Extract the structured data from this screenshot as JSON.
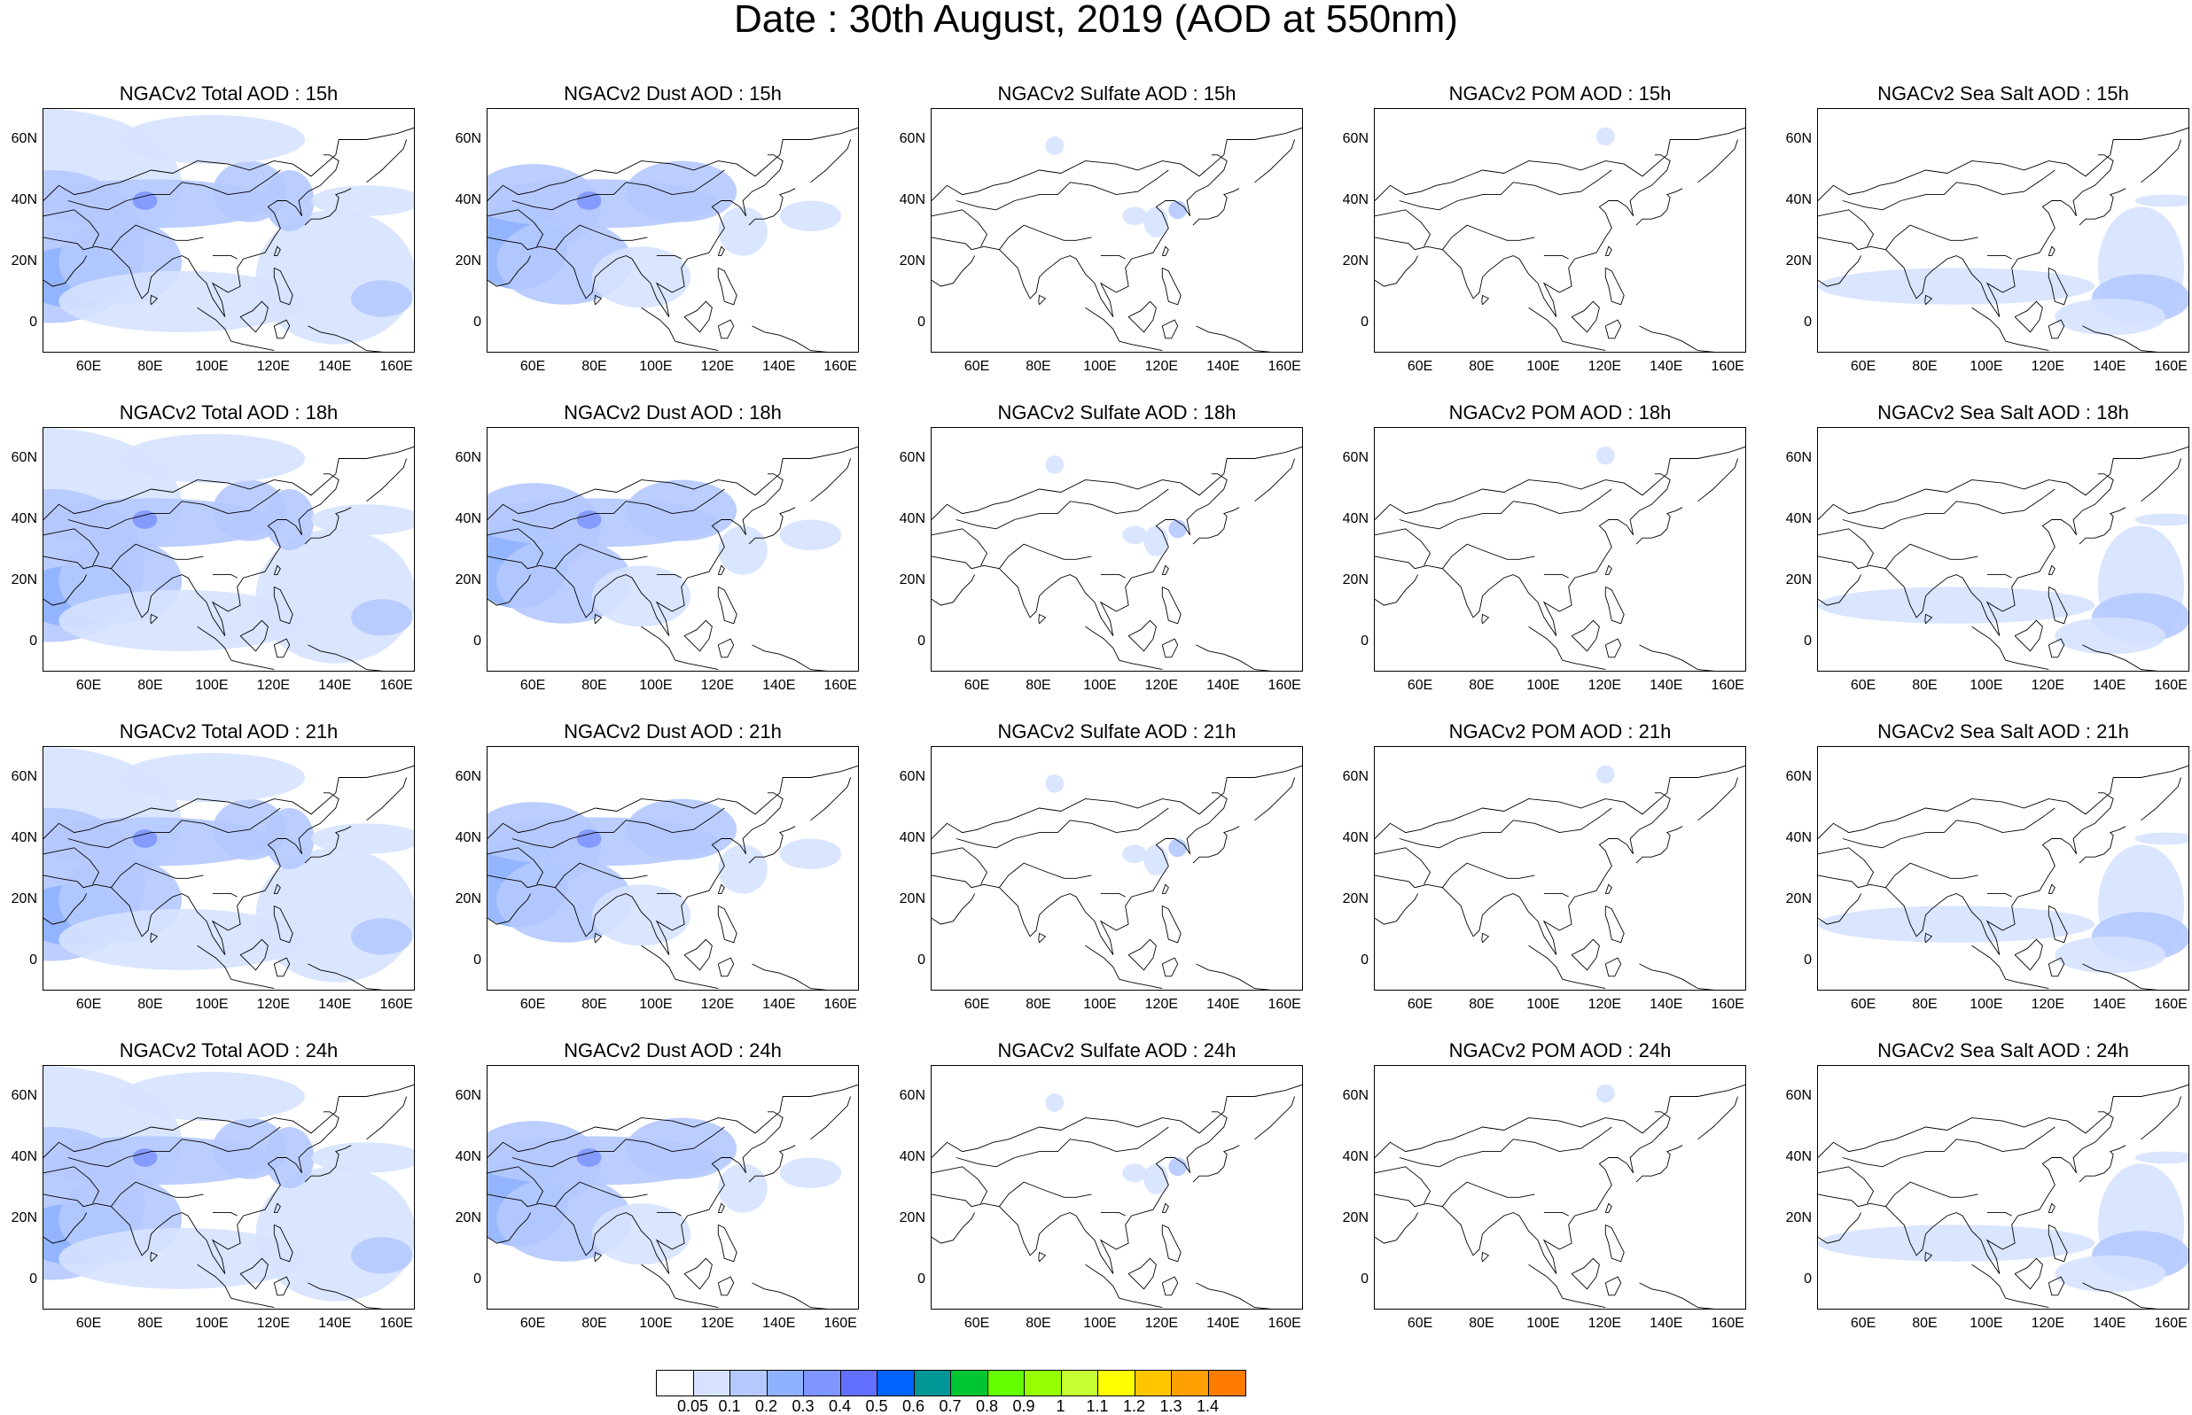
{
  "title": "Date : 30th August, 2019 (AOD at 550nm)",
  "panels": [
    [
      "NGACv2 Total AOD : 15h",
      "NGACv2 Dust AOD : 15h",
      "NGACv2 Sulfate AOD : 15h",
      "NGACv2 POM AOD : 15h",
      "NGACv2 Sea Salt AOD : 15h"
    ],
    [
      "NGACv2 Total AOD : 18h",
      "NGACv2 Dust AOD : 18h",
      "NGACv2 Sulfate AOD : 18h",
      "NGACv2 POM AOD : 18h",
      "NGACv2 Sea Salt AOD : 18h"
    ],
    [
      "NGACv2 Total AOD : 21h",
      "NGACv2 Dust AOD : 21h",
      "NGACv2 Sulfate AOD : 21h",
      "NGACv2 POM AOD : 21h",
      "NGACv2 Sea Salt AOD : 21h"
    ],
    [
      "NGACv2 Total AOD : 24h",
      "NGACv2 Dust AOD : 24h",
      "NGACv2 Sulfate AOD : 24h",
      "NGACv2 POM AOD : 24h",
      "NGACv2 Sea Salt  AOD : 24h"
    ]
  ],
  "lat_labels": [
    "60N",
    "40N",
    "20N",
    "0"
  ],
  "lon_labels": [
    "60E",
    "80E",
    "100E",
    "120E",
    "140E",
    "160E"
  ],
  "map_extent": {
    "lon": [
      45,
      166
    ],
    "lat": [
      -10,
      70
    ]
  },
  "colorbar": {
    "labels": [
      "0.05",
      "0.1",
      "0.2",
      "0.3",
      "0.4",
      "0.5",
      "0.6",
      "0.7",
      "0.8",
      "0.9",
      "1",
      "1.1",
      "1.2",
      "1.3",
      "1.4"
    ],
    "colors": [
      "#ffffff",
      "#d6e2ff",
      "#b5c9ff",
      "#8eb2ff",
      "#7f96ff",
      "#6370ff",
      "#0063ff",
      "#009696",
      "#00c633",
      "#63ff00",
      "#96ff00",
      "#c6ff33",
      "#ffff00",
      "#ffc600",
      "#ffa000",
      "#ff7c00",
      "#ff1900"
    ]
  },
  "fill_colors": {
    "light": "#d6e2ff",
    "mid": "#b5c9ff",
    "dark": "#8eb2ff",
    "darker": "#7f96ff"
  },
  "aerosol_types": [
    "total",
    "dust",
    "sulfate",
    "pom",
    "seasalt"
  ]
}
